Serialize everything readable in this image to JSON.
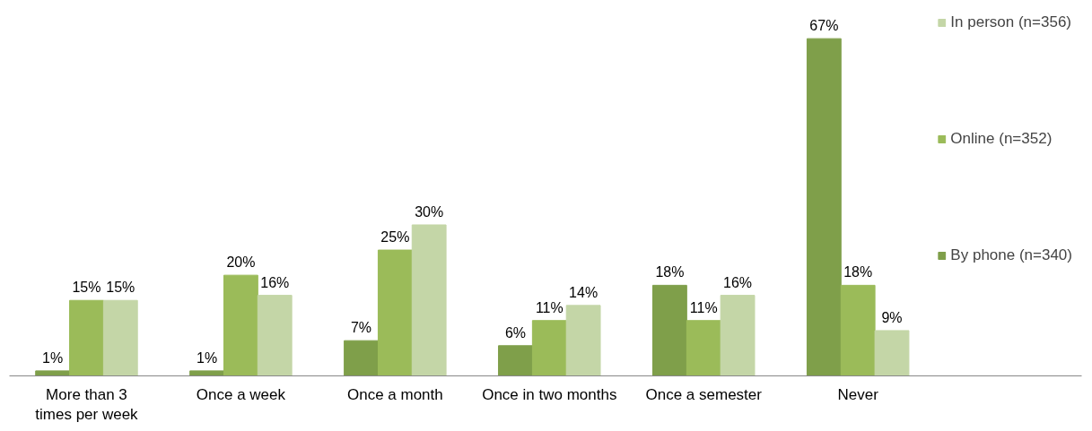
{
  "chart_data": {
    "type": "bar",
    "categories": [
      "More than 3 times per week",
      "Once a week",
      "Once a month",
      "Once in two months",
      "Once a semester",
      "Never"
    ],
    "series": [
      {
        "name": "By phone (n=340)",
        "color": "#7f9f4a",
        "values": [
          1,
          1,
          7,
          6,
          18,
          67
        ],
        "value_labels": [
          "1%",
          "1%",
          "7%",
          "6%",
          "18%",
          "67%"
        ]
      },
      {
        "name": "Online (n=352)",
        "color": "#9bbb59",
        "values": [
          15,
          20,
          25,
          11,
          11,
          18
        ],
        "value_labels": [
          "15%",
          "20%",
          "25%",
          "11%",
          "11%",
          "18%"
        ]
      },
      {
        "name": "In person (n=356)",
        "color": "#c4d6a7",
        "values": [
          15,
          16,
          30,
          14,
          16,
          9
        ],
        "value_labels": [
          "15%",
          "16%",
          "30%",
          "14%",
          "16%",
          "9%"
        ]
      }
    ],
    "legend": "right",
    "grid": false
  }
}
